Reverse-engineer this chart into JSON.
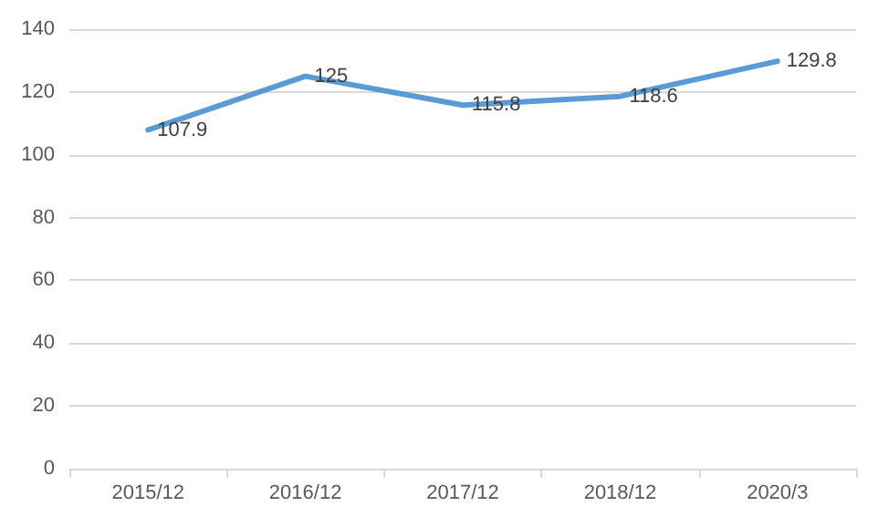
{
  "chart_data": {
    "type": "line",
    "categories": [
      "2015/12",
      "2016/12",
      "2017/12",
      "2018/12",
      "2020/3"
    ],
    "series": [
      {
        "color": "#5b9bd5",
        "values": [
          107.9,
          125,
          115.8,
          118.6,
          129.8
        ]
      }
    ],
    "ylim": [
      0,
      140
    ],
    "yticks": [
      0,
      20,
      40,
      60,
      80,
      100,
      120,
      140
    ],
    "grid": "y",
    "data_labels": true,
    "marker": "none",
    "line_style": "solid"
  }
}
